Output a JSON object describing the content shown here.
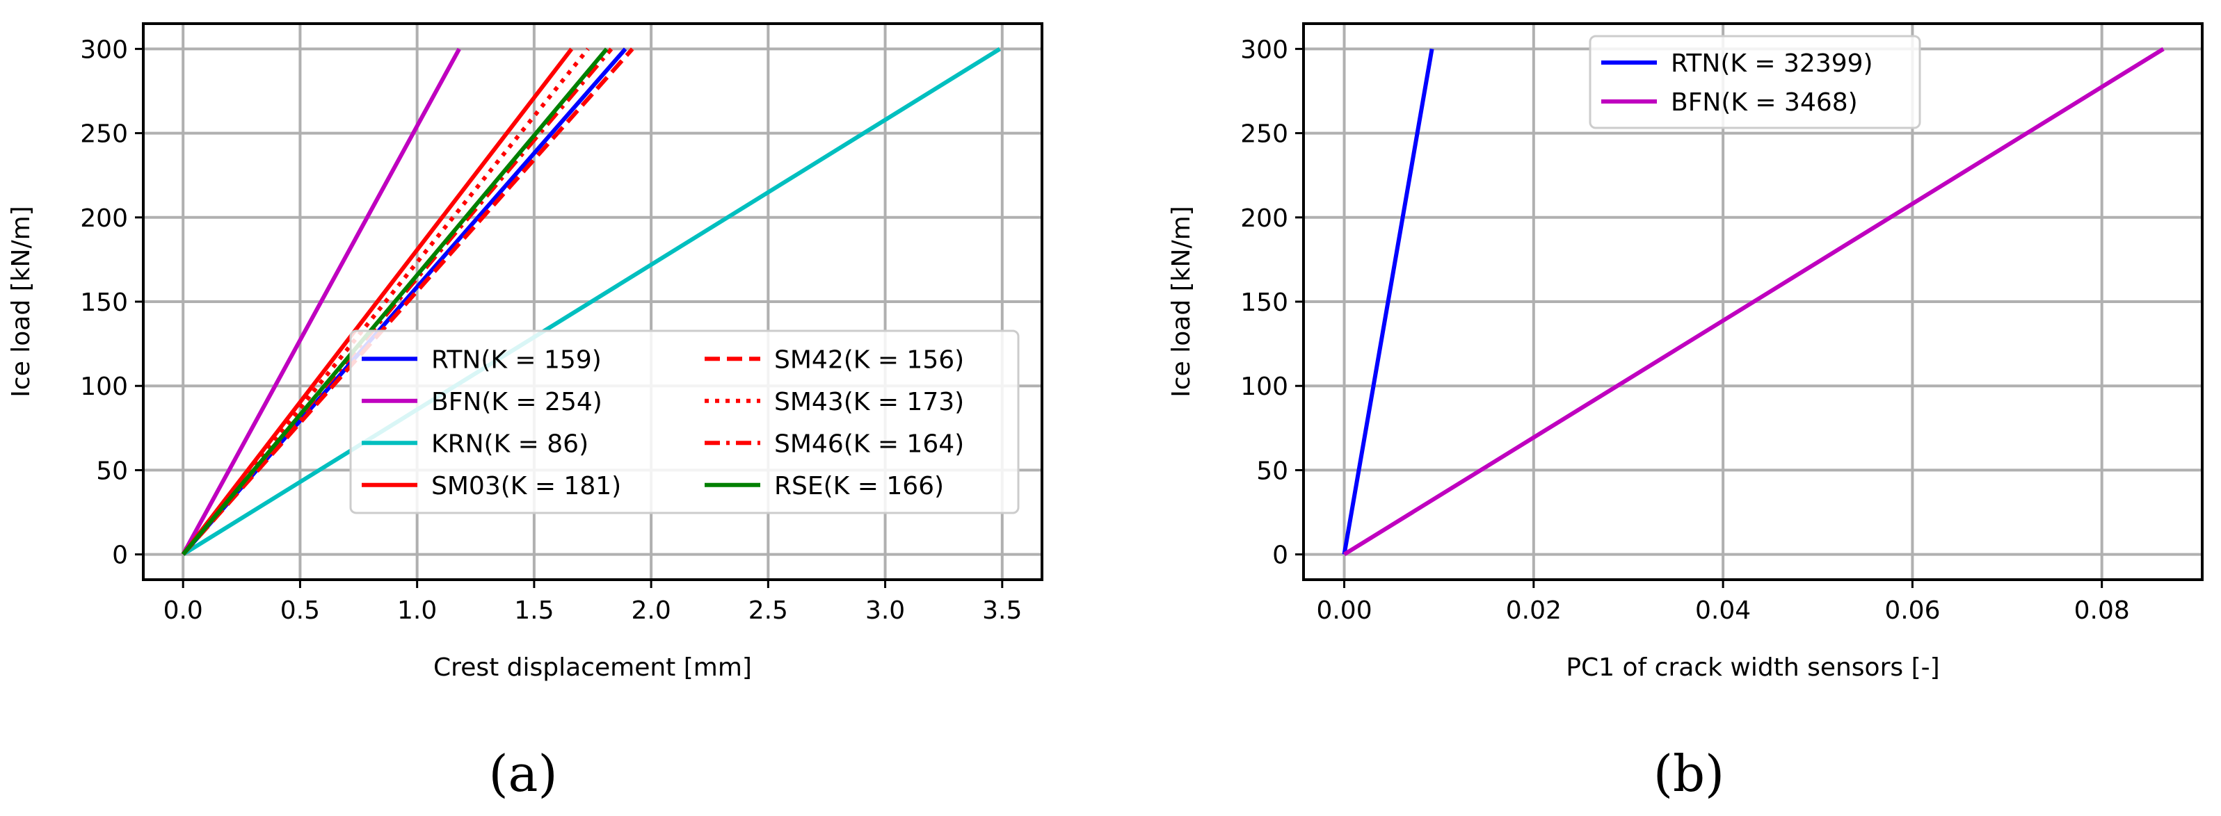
{
  "chart_data": [
    {
      "type": "line",
      "panel": "(a)",
      "xlabel": "Crest displacement [mm]",
      "ylabel": "Ice load [kN/m]",
      "xlim": [
        -0.17,
        3.67
      ],
      "ylim": [
        -15,
        315
      ],
      "xticks": [
        0.0,
        0.5,
        1.0,
        1.5,
        2.0,
        2.5,
        3.0,
        3.5
      ],
      "xtick_labels": [
        "0.0",
        "0.5",
        "1.0",
        "1.5",
        "2.0",
        "2.5",
        "3.0",
        "3.5"
      ],
      "yticks": [
        0,
        50,
        100,
        150,
        200,
        250,
        300
      ],
      "ytick_labels": [
        "0",
        "50",
        "100",
        "150",
        "200",
        "250",
        "300"
      ],
      "grid": true,
      "legend_position": "lower-right",
      "legend_columns": 2,
      "series": [
        {
          "name": "RTN(K = 159)",
          "color": "#0000ff",
          "dash": "solid",
          "x": [
            0,
            1.89
          ],
          "y": [
            0,
            300
          ]
        },
        {
          "name": "BFN(K = 254)",
          "color": "#bf00bf",
          "dash": "solid",
          "x": [
            0,
            1.18
          ],
          "y": [
            0,
            300
          ]
        },
        {
          "name": "KRN(K = 86)",
          "color": "#00bfbf",
          "dash": "solid",
          "x": [
            0,
            3.49
          ],
          "y": [
            0,
            300
          ]
        },
        {
          "name": "SM03(K = 181)",
          "color": "#ff0000",
          "dash": "solid",
          "x": [
            0,
            1.66
          ],
          "y": [
            0,
            300
          ]
        },
        {
          "name": "SM42(K = 156)",
          "color": "#ff0000",
          "dash": "dashed",
          "x": [
            0,
            1.92
          ],
          "y": [
            0,
            300
          ]
        },
        {
          "name": "SM43(K = 173)",
          "color": "#ff0000",
          "dash": "dotted",
          "x": [
            0,
            1.73
          ],
          "y": [
            0,
            300
          ]
        },
        {
          "name": "SM46(K = 164)",
          "color": "#ff0000",
          "dash": "dashdot",
          "x": [
            0,
            1.83
          ],
          "y": [
            0,
            300
          ]
        },
        {
          "name": "RSE(K = 166)",
          "color": "#008000",
          "dash": "solid",
          "x": [
            0,
            1.81
          ],
          "y": [
            0,
            300
          ]
        }
      ]
    },
    {
      "type": "line",
      "panel": "(b)",
      "xlabel": "PC1 of crack width sensors [-]",
      "ylabel": "Ice load [kN/m]",
      "xlim": [
        -0.0043,
        0.0906
      ],
      "ylim": [
        -15,
        315
      ],
      "xticks": [
        0.0,
        0.02,
        0.04,
        0.06,
        0.08
      ],
      "xtick_labels": [
        "0.00",
        "0.02",
        "0.04",
        "0.06",
        "0.08"
      ],
      "yticks": [
        0,
        50,
        100,
        150,
        200,
        250,
        300
      ],
      "ytick_labels": [
        "0",
        "50",
        "100",
        "150",
        "200",
        "250",
        "300"
      ],
      "grid": true,
      "legend_position": "top-center",
      "legend_columns": 1,
      "series": [
        {
          "name": "RTN(K = 32399)",
          "color": "#0000ff",
          "dash": "solid",
          "x": [
            0,
            0.00926
          ],
          "y": [
            0,
            300
          ]
        },
        {
          "name": "BFN(K = 3468)",
          "color": "#bf00bf",
          "dash": "solid",
          "x": [
            0,
            0.0865
          ],
          "y": [
            0,
            300
          ]
        }
      ]
    }
  ],
  "captions": {
    "a": "(a)",
    "b": "(b)"
  }
}
